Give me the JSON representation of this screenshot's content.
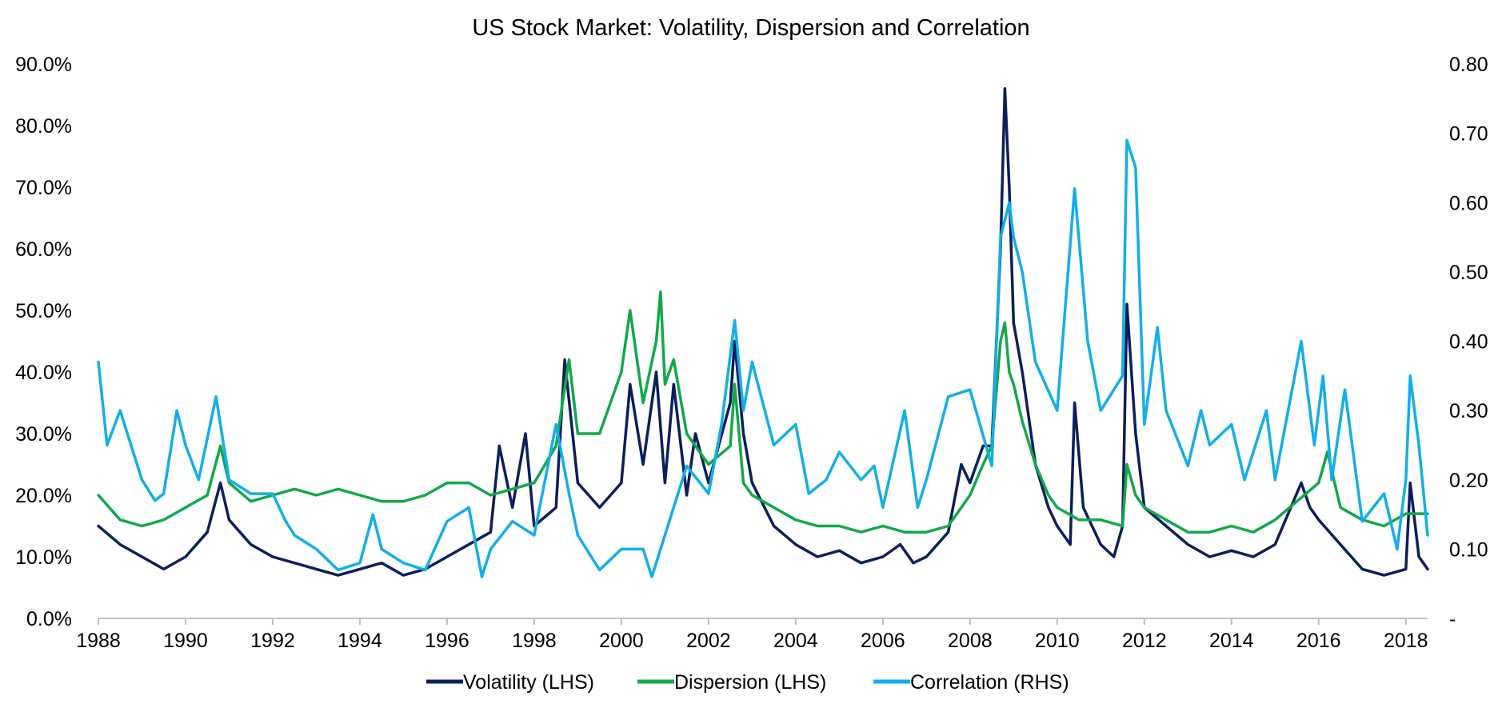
{
  "chart_data": {
    "type": "line",
    "title": "US Stock Market: Volatility, Dispersion and Correlation",
    "x_range": [
      1988,
      2018.5
    ],
    "x_tick_labels": [
      "1988",
      "1990",
      "1992",
      "1994",
      "1996",
      "1998",
      "2000",
      "2002",
      "2004",
      "2006",
      "2008",
      "2010",
      "2012",
      "2014",
      "2016",
      "2018"
    ],
    "y_left": {
      "range": [
        0,
        90
      ],
      "unit": "%",
      "tick_labels": [
        "0.0%",
        "10.0%",
        "20.0%",
        "30.0%",
        "40.0%",
        "50.0%",
        "60.0%",
        "70.0%",
        "80.0%",
        "90.0%"
      ]
    },
    "y_right": {
      "range": [
        0,
        0.8
      ],
      "tick_labels": [
        "-",
        "0.10",
        "0.20",
        "0.30",
        "0.40",
        "0.50",
        "0.60",
        "0.70",
        "0.80"
      ]
    },
    "grid": false,
    "legend_position": "bottom",
    "series": [
      {
        "name": "Volatility (LHS)",
        "axis": "left",
        "color": "#0b1f5c",
        "points": [
          [
            1988,
            15
          ],
          [
            1988.5,
            12
          ],
          [
            1989,
            10
          ],
          [
            1989.5,
            8
          ],
          [
            1990,
            10
          ],
          [
            1990.5,
            14
          ],
          [
            1990.8,
            22
          ],
          [
            1991,
            16
          ],
          [
            1991.5,
            12
          ],
          [
            1992,
            10
          ],
          [
            1992.5,
            9
          ],
          [
            1993,
            8
          ],
          [
            1993.5,
            7
          ],
          [
            1994,
            8
          ],
          [
            1994.5,
            9
          ],
          [
            1995,
            7
          ],
          [
            1995.5,
            8
          ],
          [
            1996,
            10
          ],
          [
            1996.5,
            12
          ],
          [
            1997,
            14
          ],
          [
            1997.2,
            28
          ],
          [
            1997.5,
            18
          ],
          [
            1997.8,
            30
          ],
          [
            1998,
            15
          ],
          [
            1998.5,
            18
          ],
          [
            1998.7,
            42
          ],
          [
            1999,
            22
          ],
          [
            1999.5,
            18
          ],
          [
            2000,
            22
          ],
          [
            2000.2,
            38
          ],
          [
            2000.5,
            25
          ],
          [
            2000.8,
            40
          ],
          [
            2001,
            22
          ],
          [
            2001.2,
            38
          ],
          [
            2001.5,
            20
          ],
          [
            2001.7,
            30
          ],
          [
            2002,
            22
          ],
          [
            2002.5,
            35
          ],
          [
            2002.6,
            45
          ],
          [
            2002.8,
            30
          ],
          [
            2003,
            22
          ],
          [
            2003.5,
            15
          ],
          [
            2004,
            12
          ],
          [
            2004.5,
            10
          ],
          [
            2005,
            11
          ],
          [
            2005.5,
            9
          ],
          [
            2006,
            10
          ],
          [
            2006.4,
            12
          ],
          [
            2006.7,
            9
          ],
          [
            2007,
            10
          ],
          [
            2007.5,
            14
          ],
          [
            2007.8,
            25
          ],
          [
            2008,
            22
          ],
          [
            2008.3,
            28
          ],
          [
            2008.5,
            28
          ],
          [
            2008.7,
            60
          ],
          [
            2008.8,
            86
          ],
          [
            2008.9,
            70
          ],
          [
            2009,
            48
          ],
          [
            2009.2,
            40
          ],
          [
            2009.5,
            25
          ],
          [
            2009.8,
            18
          ],
          [
            2010,
            15
          ],
          [
            2010.3,
            12
          ],
          [
            2010.4,
            35
          ],
          [
            2010.6,
            18
          ],
          [
            2011,
            12
          ],
          [
            2011.3,
            10
          ],
          [
            2011.5,
            15
          ],
          [
            2011.6,
            51
          ],
          [
            2011.8,
            30
          ],
          [
            2012,
            18
          ],
          [
            2012.5,
            15
          ],
          [
            2013,
            12
          ],
          [
            2013.5,
            10
          ],
          [
            2014,
            11
          ],
          [
            2014.5,
            10
          ],
          [
            2015,
            12
          ],
          [
            2015.6,
            22
          ],
          [
            2015.8,
            18
          ],
          [
            2016,
            16
          ],
          [
            2016.5,
            12
          ],
          [
            2017,
            8
          ],
          [
            2017.5,
            7
          ],
          [
            2018,
            8
          ],
          [
            2018.1,
            22
          ],
          [
            2018.3,
            10
          ],
          [
            2018.5,
            8
          ]
        ]
      },
      {
        "name": "Dispersion (LHS)",
        "axis": "left",
        "color": "#12a84a",
        "points": [
          [
            1988,
            20
          ],
          [
            1988.5,
            16
          ],
          [
            1989,
            15
          ],
          [
            1989.5,
            16
          ],
          [
            1990,
            18
          ],
          [
            1990.5,
            20
          ],
          [
            1990.8,
            28
          ],
          [
            1991,
            22
          ],
          [
            1991.5,
            19
          ],
          [
            1992,
            20
          ],
          [
            1992.5,
            21
          ],
          [
            1993,
            20
          ],
          [
            1993.5,
            21
          ],
          [
            1994,
            20
          ],
          [
            1994.5,
            19
          ],
          [
            1995,
            19
          ],
          [
            1995.5,
            20
          ],
          [
            1996,
            22
          ],
          [
            1996.5,
            22
          ],
          [
            1997,
            20
          ],
          [
            1997.5,
            21
          ],
          [
            1998,
            22
          ],
          [
            1998.5,
            28
          ],
          [
            1998.8,
            42
          ],
          [
            1999,
            30
          ],
          [
            1999.5,
            30
          ],
          [
            2000,
            40
          ],
          [
            2000.2,
            50
          ],
          [
            2000.5,
            35
          ],
          [
            2000.8,
            45
          ],
          [
            2000.9,
            53
          ],
          [
            2001,
            38
          ],
          [
            2001.2,
            42
          ],
          [
            2001.5,
            30
          ],
          [
            2002,
            25
          ],
          [
            2002.5,
            28
          ],
          [
            2002.6,
            38
          ],
          [
            2002.8,
            22
          ],
          [
            2003,
            20
          ],
          [
            2003.5,
            18
          ],
          [
            2004,
            16
          ],
          [
            2004.5,
            15
          ],
          [
            2005,
            15
          ],
          [
            2005.5,
            14
          ],
          [
            2006,
            15
          ],
          [
            2006.5,
            14
          ],
          [
            2007,
            14
          ],
          [
            2007.5,
            15
          ],
          [
            2008,
            20
          ],
          [
            2008.3,
            25
          ],
          [
            2008.5,
            28
          ],
          [
            2008.7,
            45
          ],
          [
            2008.8,
            48
          ],
          [
            2008.9,
            40
          ],
          [
            2009,
            38
          ],
          [
            2009.2,
            32
          ],
          [
            2009.5,
            25
          ],
          [
            2009.8,
            20
          ],
          [
            2010,
            18
          ],
          [
            2010.5,
            16
          ],
          [
            2011,
            16
          ],
          [
            2011.5,
            15
          ],
          [
            2011.6,
            25
          ],
          [
            2011.8,
            20
          ],
          [
            2012,
            18
          ],
          [
            2012.5,
            16
          ],
          [
            2013,
            14
          ],
          [
            2013.5,
            14
          ],
          [
            2014,
            15
          ],
          [
            2014.5,
            14
          ],
          [
            2015,
            16
          ],
          [
            2015.5,
            19
          ],
          [
            2016,
            22
          ],
          [
            2016.2,
            27
          ],
          [
            2016.5,
            18
          ],
          [
            2017,
            16
          ],
          [
            2017.5,
            15
          ],
          [
            2018,
            17
          ],
          [
            2018.5,
            17
          ]
        ]
      },
      {
        "name": "Correlation (RHS)",
        "axis": "right",
        "color": "#13aee8",
        "points": [
          [
            1988,
            0.37
          ],
          [
            1988.2,
            0.25
          ],
          [
            1988.5,
            0.3
          ],
          [
            1989,
            0.2
          ],
          [
            1989.3,
            0.17
          ],
          [
            1989.5,
            0.18
          ],
          [
            1989.8,
            0.3
          ],
          [
            1990,
            0.25
          ],
          [
            1990.3,
            0.2
          ],
          [
            1990.7,
            0.32
          ],
          [
            1991,
            0.2
          ],
          [
            1991.5,
            0.18
          ],
          [
            1992,
            0.18
          ],
          [
            1992.3,
            0.14
          ],
          [
            1992.5,
            0.12
          ],
          [
            1993,
            0.1
          ],
          [
            1993.5,
            0.07
          ],
          [
            1994,
            0.08
          ],
          [
            1994.3,
            0.15
          ],
          [
            1994.5,
            0.1
          ],
          [
            1995,
            0.08
          ],
          [
            1995.5,
            0.07
          ],
          [
            1996,
            0.14
          ],
          [
            1996.5,
            0.16
          ],
          [
            1996.8,
            0.06
          ],
          [
            1997,
            0.1
          ],
          [
            1997.5,
            0.14
          ],
          [
            1998,
            0.12
          ],
          [
            1998.5,
            0.28
          ],
          [
            1998.8,
            0.18
          ],
          [
            1999,
            0.12
          ],
          [
            1999.5,
            0.07
          ],
          [
            2000,
            0.1
          ],
          [
            2000.5,
            0.1
          ],
          [
            2000.7,
            0.06
          ],
          [
            2001,
            0.12
          ],
          [
            2001.5,
            0.22
          ],
          [
            2002,
            0.18
          ],
          [
            2002.3,
            0.28
          ],
          [
            2002.6,
            0.43
          ],
          [
            2002.8,
            0.3
          ],
          [
            2003,
            0.37
          ],
          [
            2003.5,
            0.25
          ],
          [
            2004,
            0.28
          ],
          [
            2004.3,
            0.18
          ],
          [
            2004.7,
            0.2
          ],
          [
            2005,
            0.24
          ],
          [
            2005.5,
            0.2
          ],
          [
            2005.8,
            0.22
          ],
          [
            2006,
            0.16
          ],
          [
            2006.5,
            0.3
          ],
          [
            2006.8,
            0.16
          ],
          [
            2007,
            0.2
          ],
          [
            2007.5,
            0.32
          ],
          [
            2008,
            0.33
          ],
          [
            2008.5,
            0.22
          ],
          [
            2008.7,
            0.55
          ],
          [
            2008.9,
            0.6
          ],
          [
            2009,
            0.55
          ],
          [
            2009.2,
            0.5
          ],
          [
            2009.5,
            0.37
          ],
          [
            2010,
            0.3
          ],
          [
            2010.4,
            0.62
          ],
          [
            2010.7,
            0.4
          ],
          [
            2011,
            0.3
          ],
          [
            2011.5,
            0.35
          ],
          [
            2011.6,
            0.69
          ],
          [
            2011.8,
            0.65
          ],
          [
            2012,
            0.28
          ],
          [
            2012.3,
            0.42
          ],
          [
            2012.5,
            0.3
          ],
          [
            2013,
            0.22
          ],
          [
            2013.3,
            0.3
          ],
          [
            2013.5,
            0.25
          ],
          [
            2014,
            0.28
          ],
          [
            2014.3,
            0.2
          ],
          [
            2014.8,
            0.3
          ],
          [
            2015,
            0.2
          ],
          [
            2015.6,
            0.4
          ],
          [
            2015.9,
            0.25
          ],
          [
            2016.1,
            0.35
          ],
          [
            2016.3,
            0.2
          ],
          [
            2016.6,
            0.33
          ],
          [
            2017,
            0.14
          ],
          [
            2017.5,
            0.18
          ],
          [
            2017.8,
            0.1
          ],
          [
            2018,
            0.2
          ],
          [
            2018.1,
            0.35
          ],
          [
            2018.3,
            0.25
          ],
          [
            2018.5,
            0.12
          ]
        ]
      }
    ]
  }
}
